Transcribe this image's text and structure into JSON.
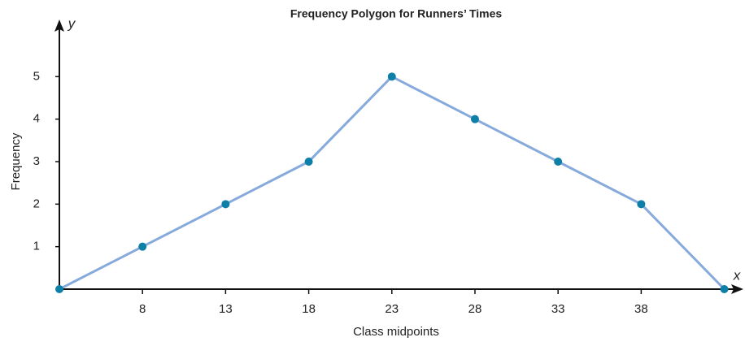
{
  "chart_data": {
    "type": "line",
    "title": "Frequency Polygon for Runners’ Times",
    "x_label": "Class midpoints",
    "y_label": "Frequency",
    "x_axis_symbol": "x",
    "y_axis_symbol": "y",
    "x": [
      3,
      8,
      13,
      18,
      23,
      28,
      33,
      38,
      43
    ],
    "series": [
      {
        "name": "Frequency",
        "color": "#86aadc",
        "marker_color": "#0e7fa6",
        "values": [
          0,
          1,
          2,
          3,
          5,
          4,
          3,
          2,
          0
        ]
      }
    ],
    "xlim": [
      3,
      44
    ],
    "ylim": [
      0,
      6
    ],
    "xticks": [
      8,
      13,
      18,
      23,
      28,
      33,
      38
    ],
    "yticks": [
      1,
      2,
      3,
      4,
      5
    ],
    "grid": false
  }
}
